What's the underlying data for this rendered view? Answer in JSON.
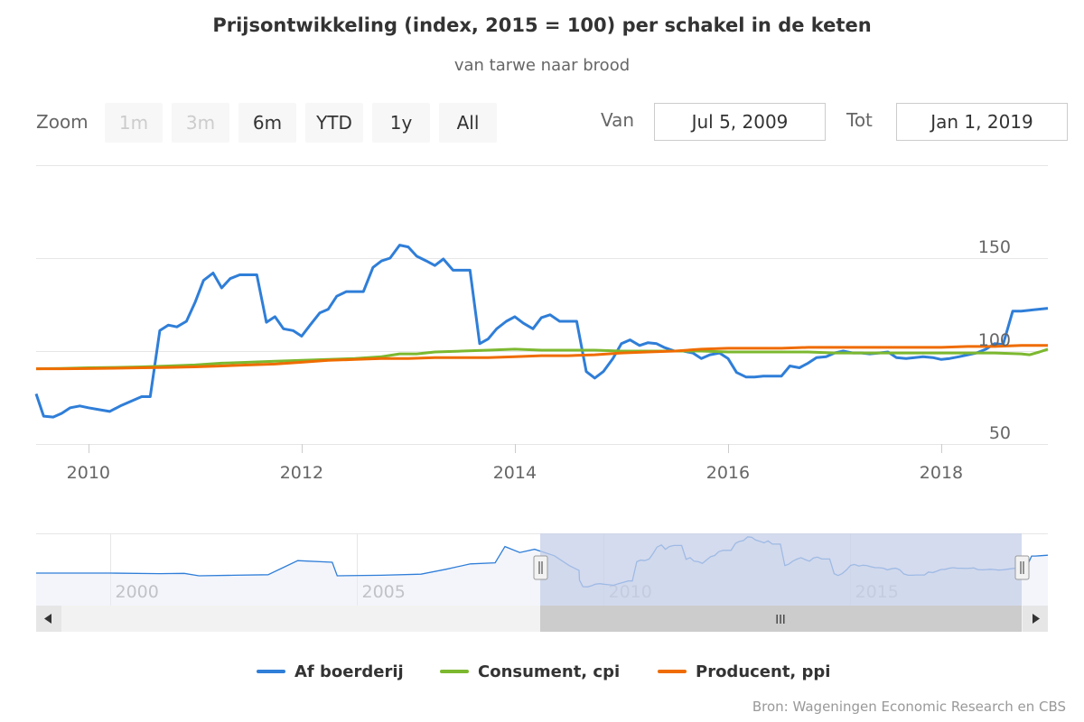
{
  "title": "Prijsontwikkeling (index, 2015 = 100) per schakel in de keten",
  "subtitle": "van tarwe naar brood",
  "range_selector": {
    "zoom_label": "Zoom",
    "buttons": [
      {
        "label": "1m",
        "enabled": false
      },
      {
        "label": "3m",
        "enabled": false
      },
      {
        "label": "6m",
        "enabled": true
      },
      {
        "label": "YTD",
        "enabled": true
      },
      {
        "label": "1y",
        "enabled": true
      },
      {
        "label": "All",
        "enabled": true
      }
    ],
    "from_label": "Van",
    "from_value": "Jul 5, 2009",
    "to_label": "Tot",
    "to_value": "Jan 1, 2019"
  },
  "navigator": {
    "x_labels": [
      "2000",
      "2005",
      "2010",
      "2015"
    ],
    "scrollbar_grip": "III"
  },
  "credits": "Bron: Wageningen Economic Research en CBS",
  "colors": {
    "af_boerderij": "#2f7ed8",
    "consument": "#7cb82f",
    "producent": "#ef6c00",
    "grid": "#e6e6e6",
    "navigator_mask": "#c5cfe8"
  },
  "chart_data": {
    "type": "line",
    "title": "Prijsontwikkeling (index, 2015 = 100) per schakel in de keten",
    "subtitle": "van tarwe naar brood",
    "x_range": [
      2009.51,
      2019.0
    ],
    "y_range": [
      50,
      150
    ],
    "y_ticks": [
      50,
      100,
      150
    ],
    "x_ticks": [
      2010,
      2012,
      2014,
      2016,
      2018
    ],
    "x_tick_labels": [
      "2010",
      "2012",
      "2014",
      "2016",
      "2018"
    ],
    "grid": true,
    "legend_position": "bottom",
    "series": [
      {
        "name": "Af boerderij",
        "color": "#2f7ed8",
        "points": [
          [
            2009.51,
            77
          ],
          [
            2009.58,
            65
          ],
          [
            2009.67,
            64.5
          ],
          [
            2009.75,
            66.5
          ],
          [
            2009.83,
            69.5
          ],
          [
            2009.92,
            70.5
          ],
          [
            2010.0,
            69.5
          ],
          [
            2010.1,
            68.5
          ],
          [
            2010.2,
            67.5
          ],
          [
            2010.3,
            70.5
          ],
          [
            2010.4,
            73
          ],
          [
            2010.5,
            75.5
          ],
          [
            2010.58,
            75.5
          ],
          [
            2010.67,
            111
          ],
          [
            2010.75,
            114
          ],
          [
            2010.83,
            113
          ],
          [
            2010.92,
            116
          ],
          [
            2011.0,
            126
          ],
          [
            2011.08,
            138
          ],
          [
            2011.17,
            142
          ],
          [
            2011.25,
            134
          ],
          [
            2011.33,
            139
          ],
          [
            2011.42,
            141
          ],
          [
            2011.58,
            141
          ],
          [
            2011.67,
            115.5
          ],
          [
            2011.75,
            118.5
          ],
          [
            2011.83,
            112
          ],
          [
            2011.92,
            111
          ],
          [
            2012.0,
            108
          ],
          [
            2012.08,
            114
          ],
          [
            2012.17,
            120.5
          ],
          [
            2012.25,
            122.5
          ],
          [
            2012.33,
            129.5
          ],
          [
            2012.42,
            132
          ],
          [
            2012.58,
            132
          ],
          [
            2012.67,
            145
          ],
          [
            2012.75,
            148.5
          ],
          [
            2012.83,
            150
          ],
          [
            2012.92,
            157
          ],
          [
            2013.0,
            156
          ],
          [
            2013.08,
            151
          ],
          [
            2013.17,
            148.5
          ],
          [
            2013.25,
            146
          ],
          [
            2013.33,
            149.5
          ],
          [
            2013.42,
            143.5
          ],
          [
            2013.58,
            143.5
          ],
          [
            2013.67,
            104
          ],
          [
            2013.75,
            106.5
          ],
          [
            2013.83,
            112
          ],
          [
            2013.92,
            116
          ],
          [
            2014.0,
            118.5
          ],
          [
            2014.08,
            115
          ],
          [
            2014.17,
            112
          ],
          [
            2014.25,
            118
          ],
          [
            2014.33,
            119.5
          ],
          [
            2014.42,
            116
          ],
          [
            2014.58,
            116
          ],
          [
            2014.67,
            89
          ],
          [
            2014.75,
            85.5
          ],
          [
            2014.83,
            89
          ],
          [
            2014.92,
            96
          ],
          [
            2015.0,
            104
          ],
          [
            2015.08,
            106
          ],
          [
            2015.17,
            103
          ],
          [
            2015.25,
            104.5
          ],
          [
            2015.33,
            104
          ],
          [
            2015.4,
            102
          ],
          [
            2015.5,
            100
          ],
          [
            2015.58,
            100
          ],
          [
            2015.67,
            99
          ],
          [
            2015.75,
            96
          ],
          [
            2015.83,
            98
          ],
          [
            2015.92,
            99
          ],
          [
            2016.0,
            96
          ],
          [
            2016.08,
            88.5
          ],
          [
            2016.17,
            86
          ],
          [
            2016.25,
            86
          ],
          [
            2016.33,
            86.5
          ],
          [
            2016.5,
            86.5
          ],
          [
            2016.58,
            92
          ],
          [
            2016.67,
            91
          ],
          [
            2016.75,
            93.5
          ],
          [
            2016.83,
            96.5
          ],
          [
            2016.92,
            97
          ],
          [
            2017.0,
            99
          ],
          [
            2017.08,
            100
          ],
          [
            2017.17,
            99
          ],
          [
            2017.25,
            99
          ],
          [
            2017.33,
            98.5
          ],
          [
            2017.42,
            99
          ],
          [
            2017.5,
            99.5
          ],
          [
            2017.58,
            96.5
          ],
          [
            2017.67,
            96
          ],
          [
            2017.75,
            96.5
          ],
          [
            2017.83,
            97
          ],
          [
            2017.92,
            96.5
          ],
          [
            2018.0,
            95.5
          ],
          [
            2018.08,
            96
          ],
          [
            2018.17,
            97
          ],
          [
            2018.25,
            98
          ],
          [
            2018.33,
            99
          ],
          [
            2018.42,
            101
          ],
          [
            2018.5,
            104
          ],
          [
            2018.58,
            103.5
          ],
          [
            2018.67,
            121.5
          ],
          [
            2018.75,
            121.5
          ],
          [
            2018.83,
            122
          ],
          [
            2019.0,
            123
          ]
        ]
      },
      {
        "name": "Consument, cpi",
        "color": "#7cb82f",
        "points": [
          [
            2009.51,
            90.5
          ],
          [
            2009.75,
            90.7
          ],
          [
            2010.0,
            91
          ],
          [
            2010.25,
            91.2
          ],
          [
            2010.5,
            91.5
          ],
          [
            2010.75,
            92
          ],
          [
            2011.0,
            92.5
          ],
          [
            2011.25,
            93.5
          ],
          [
            2011.5,
            94
          ],
          [
            2011.75,
            94.5
          ],
          [
            2012.0,
            95
          ],
          [
            2012.25,
            95.5
          ],
          [
            2012.5,
            96
          ],
          [
            2012.75,
            97
          ],
          [
            2012.92,
            98.5
          ],
          [
            2013.08,
            98.5
          ],
          [
            2013.25,
            99.5
          ],
          [
            2013.5,
            100
          ],
          [
            2013.75,
            100.5
          ],
          [
            2014.0,
            101
          ],
          [
            2014.25,
            100.5
          ],
          [
            2014.5,
            100.5
          ],
          [
            2014.75,
            100.5
          ],
          [
            2015.0,
            100
          ],
          [
            2015.25,
            100
          ],
          [
            2015.5,
            100
          ],
          [
            2015.75,
            100
          ],
          [
            2016.0,
            99.5
          ],
          [
            2016.25,
            99.5
          ],
          [
            2016.5,
            99.5
          ],
          [
            2016.75,
            99.5
          ],
          [
            2017.0,
            99
          ],
          [
            2017.25,
            99
          ],
          [
            2017.5,
            99
          ],
          [
            2017.75,
            99
          ],
          [
            2018.0,
            99
          ],
          [
            2018.25,
            99
          ],
          [
            2018.5,
            99
          ],
          [
            2018.75,
            98.5
          ],
          [
            2018.83,
            98
          ],
          [
            2018.92,
            99.5
          ],
          [
            2019.0,
            101
          ]
        ]
      },
      {
        "name": "Producent, ppi",
        "color": "#ef6c00",
        "points": [
          [
            2009.51,
            90.5
          ],
          [
            2009.75,
            90.5
          ],
          [
            2010.0,
            90.6
          ],
          [
            2010.25,
            90.8
          ],
          [
            2010.5,
            91
          ],
          [
            2010.75,
            91.2
          ],
          [
            2011.0,
            91.5
          ],
          [
            2011.25,
            92
          ],
          [
            2011.5,
            92.5
          ],
          [
            2011.75,
            93
          ],
          [
            2012.0,
            94
          ],
          [
            2012.25,
            95
          ],
          [
            2012.5,
            95.5
          ],
          [
            2012.75,
            96
          ],
          [
            2013.0,
            96
          ],
          [
            2013.25,
            96.5
          ],
          [
            2013.5,
            96.5
          ],
          [
            2013.75,
            96.5
          ],
          [
            2014.0,
            97
          ],
          [
            2014.25,
            97.5
          ],
          [
            2014.5,
            97.5
          ],
          [
            2014.75,
            98
          ],
          [
            2015.0,
            99
          ],
          [
            2015.25,
            99.5
          ],
          [
            2015.5,
            100
          ],
          [
            2015.75,
            101
          ],
          [
            2016.0,
            101.5
          ],
          [
            2016.25,
            101.5
          ],
          [
            2016.5,
            101.5
          ],
          [
            2016.75,
            102
          ],
          [
            2017.0,
            102
          ],
          [
            2017.25,
            102
          ],
          [
            2017.5,
            102
          ],
          [
            2017.75,
            102
          ],
          [
            2018.0,
            102
          ],
          [
            2018.25,
            102.5
          ],
          [
            2018.5,
            102.5
          ],
          [
            2018.75,
            103
          ],
          [
            2019.0,
            103
          ]
        ]
      }
    ]
  }
}
